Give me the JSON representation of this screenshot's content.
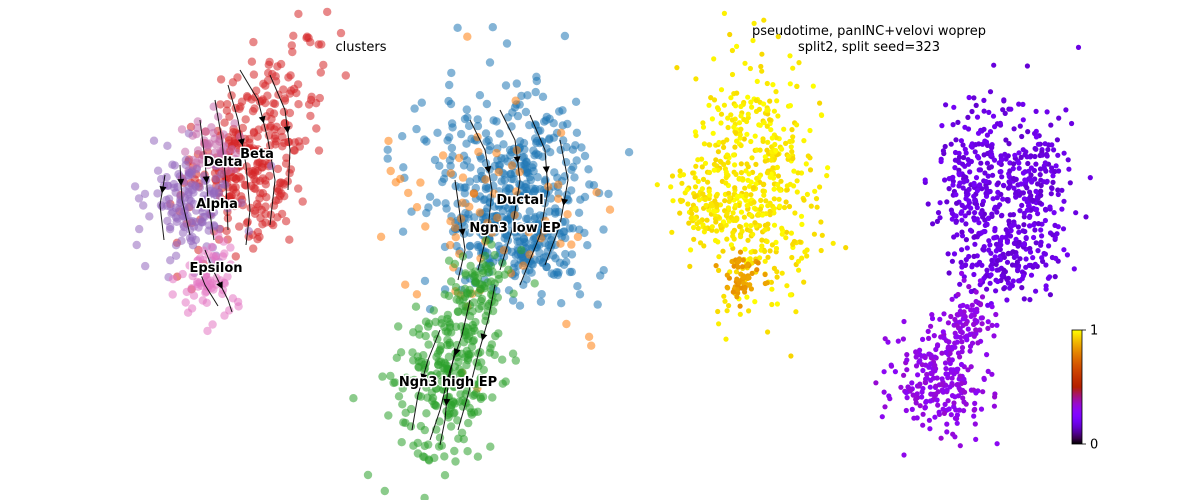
{
  "chart_data": [
    {
      "type": "scatter",
      "title": "clusters",
      "kind": "UMAP embedding with velocity streamlines, colored by cluster",
      "axes": "off",
      "grid": false,
      "clusters": [
        {
          "name": "Beta",
          "color": "#d62728"
        },
        {
          "name": "Delta",
          "color": "#c46cac"
        },
        {
          "name": "Alpha",
          "color": "#9467bd"
        },
        {
          "name": "Epsilon",
          "color": "#e377c2"
        },
        {
          "name": "Ductal",
          "color": "#1f77b4"
        },
        {
          "name": "Ngn3 low EP",
          "color": "#ff7f0e"
        },
        {
          "name": "Ngn3 high EP",
          "color": "#2ca02c"
        }
      ]
    },
    {
      "type": "scatter",
      "title": "pseudotime, panINC+velovi woprep\nsplit2, split seed=323",
      "kind": "UMAP embedding colored by pseudotime",
      "axes": "off",
      "grid": false,
      "colormap": "gnuplot",
      "colorbar": {
        "range": [
          0,
          1
        ],
        "tick_labels": [
          "0",
          "1"
        ]
      },
      "groups": [
        {
          "region": "upper-left lobe (endocrine)",
          "pseudotime": 0.97
        },
        {
          "region": "upper-left lobe, lower tip",
          "pseudotime": 0.85
        },
        {
          "region": "upper-right lobe (ductal)",
          "pseudotime": 0.18
        },
        {
          "region": "lower stalk",
          "pseudotime": 0.32
        }
      ]
    }
  ],
  "colors": {
    "arrow": "#000000",
    "background": "#ffffff"
  }
}
